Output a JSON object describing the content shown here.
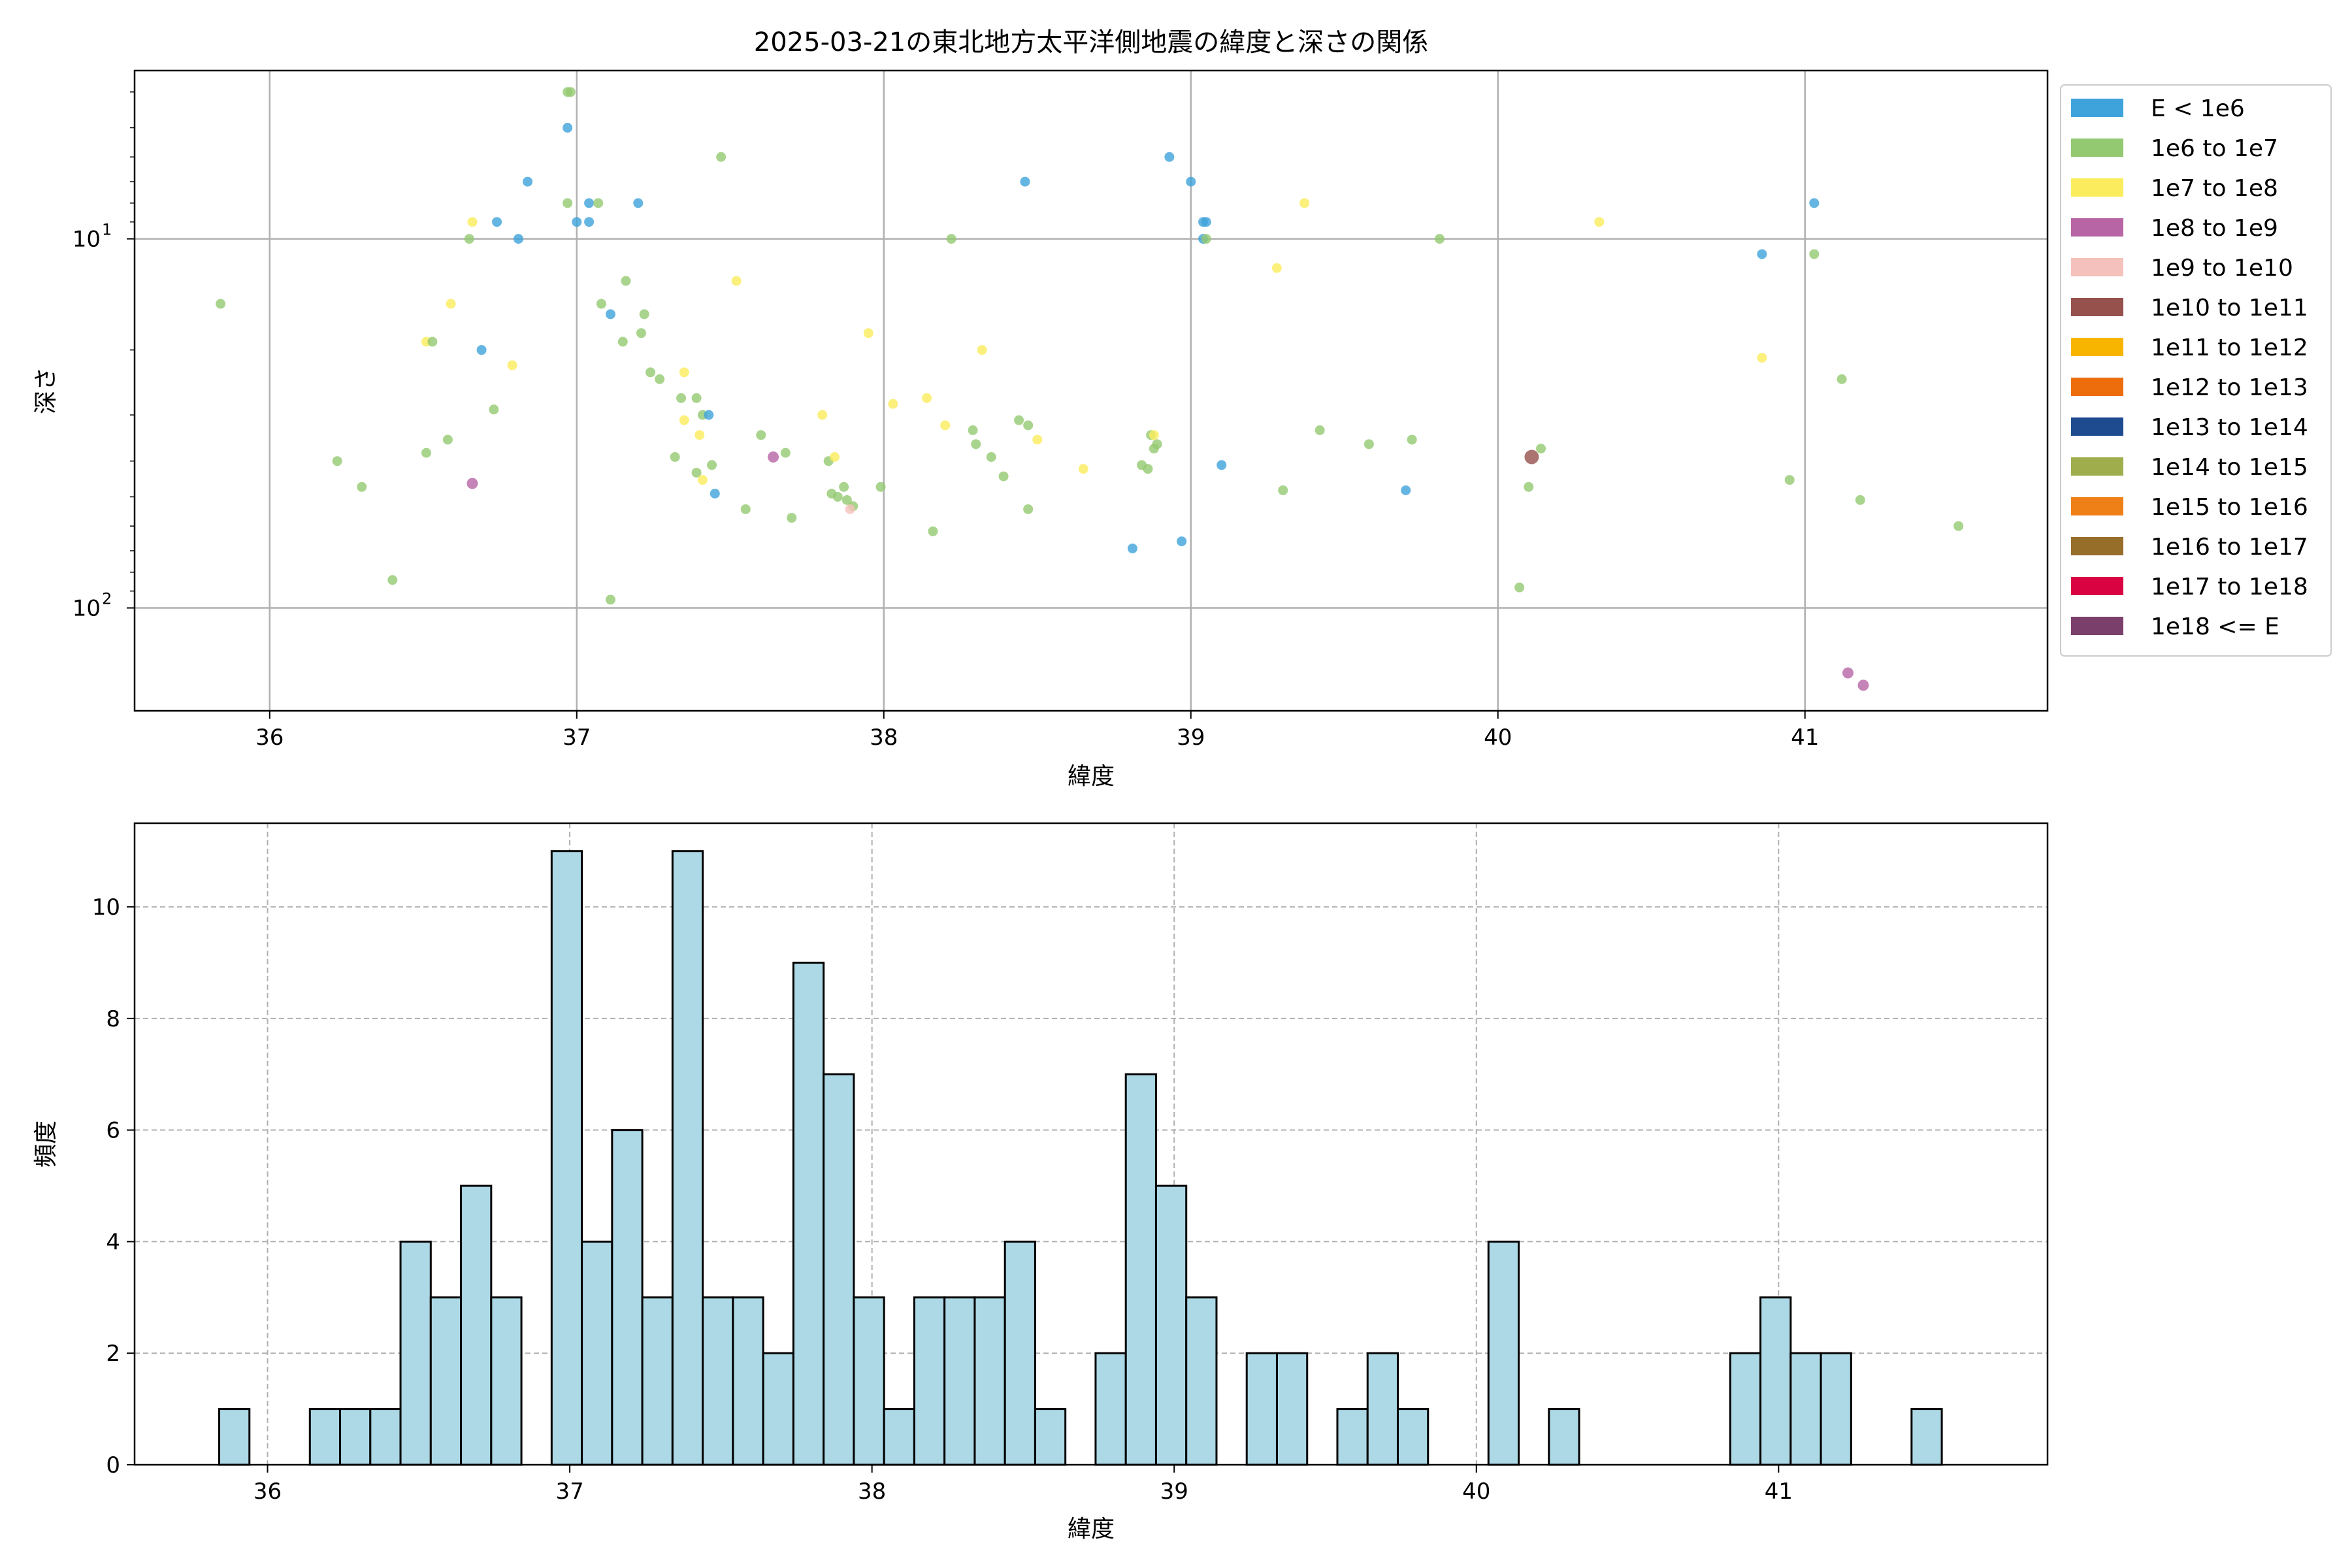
{
  "chart_data": [
    {
      "type": "scatter",
      "title": "2025-03-21の東北地方太平洋側地震の緯度と深さの関係",
      "xlabel": "緯度",
      "ylabel": "深さ",
      "xlim": [
        35.56,
        41.79
      ],
      "ylim": [
        190,
        3.5
      ],
      "yscale": "log",
      "y_inverted": true,
      "grid": true,
      "xticks": [
        36,
        37,
        38,
        39,
        40,
        41
      ],
      "yticks": [
        {
          "value": 10,
          "base": "10",
          "exp": "1"
        },
        {
          "value": 100,
          "base": "10",
          "exp": "2"
        }
      ],
      "legend_position": "outside-right",
      "legend": [
        {
          "label": "E < 1e6",
          "color": "#3fa3db"
        },
        {
          "label": "1e6 to 1e7",
          "color": "#93c971"
        },
        {
          "label": "1e7 to 1e8",
          "color": "#fbec5d"
        },
        {
          "label": "1e8 to 1e9",
          "color": "#b765a5"
        },
        {
          "label": "1e9 to 1e10",
          "color": "#f5c1bc"
        },
        {
          "label": "1e10 to 1e11",
          "color": "#96514d"
        },
        {
          "label": "1e11 to 1e12",
          "color": "#f8b500"
        },
        {
          "label": "1e12 to 1e13",
          "color": "#ed6d0d"
        },
        {
          "label": "1e13 to 1e14",
          "color": "#1e4b8f"
        },
        {
          "label": "1e14 to 1e15",
          "color": "#9fad4d"
        },
        {
          "label": "1e15 to 1e16",
          "color": "#ef7f17"
        },
        {
          "label": "1e16 to 1e17",
          "color": "#976d2a"
        },
        {
          "label": "1e17 to 1e18",
          "color": "#d90342"
        },
        {
          "label": "1e18 <= E",
          "color": "#7b3f6c"
        }
      ],
      "points": [
        {
          "x": 36.97,
          "y": 4.0,
          "c": 1
        },
        {
          "x": 36.98,
          "y": 4.0,
          "c": 1
        },
        {
          "x": 36.97,
          "y": 5.0,
          "c": 0
        },
        {
          "x": 37.47,
          "y": 6.0,
          "c": 1
        },
        {
          "x": 38.93,
          "y": 6.0,
          "c": 0
        },
        {
          "x": 36.84,
          "y": 7.0,
          "c": 0
        },
        {
          "x": 38.46,
          "y": 7.0,
          "c": 0
        },
        {
          "x": 39.0,
          "y": 7.0,
          "c": 0
        },
        {
          "x": 36.97,
          "y": 8.0,
          "c": 1
        },
        {
          "x": 37.04,
          "y": 8.0,
          "c": 0
        },
        {
          "x": 37.07,
          "y": 8.0,
          "c": 1
        },
        {
          "x": 37.2,
          "y": 8.0,
          "c": 0
        },
        {
          "x": 39.37,
          "y": 8.0,
          "c": 2
        },
        {
          "x": 41.03,
          "y": 8.0,
          "c": 0
        },
        {
          "x": 36.66,
          "y": 9.0,
          "c": 2
        },
        {
          "x": 36.74,
          "y": 9.0,
          "c": 0
        },
        {
          "x": 37.0,
          "y": 9.0,
          "c": 0
        },
        {
          "x": 37.04,
          "y": 9.0,
          "c": 0
        },
        {
          "x": 39.04,
          "y": 9.0,
          "c": 0
        },
        {
          "x": 39.05,
          "y": 9.0,
          "c": 0
        },
        {
          "x": 40.33,
          "y": 9.0,
          "c": 2
        },
        {
          "x": 36.65,
          "y": 10.0,
          "c": 1
        },
        {
          "x": 36.81,
          "y": 10.0,
          "c": 0
        },
        {
          "x": 38.22,
          "y": 10.0,
          "c": 1
        },
        {
          "x": 39.04,
          "y": 10.0,
          "c": 0
        },
        {
          "x": 39.05,
          "y": 10.0,
          "c": 1
        },
        {
          "x": 39.81,
          "y": 10.0,
          "c": 1
        },
        {
          "x": 40.86,
          "y": 11.0,
          "c": 0
        },
        {
          "x": 41.03,
          "y": 11.0,
          "c": 1
        },
        {
          "x": 39.28,
          "y": 12.0,
          "c": 2
        },
        {
          "x": 37.16,
          "y": 13.0,
          "c": 1
        },
        {
          "x": 37.52,
          "y": 13.0,
          "c": 2
        },
        {
          "x": 35.84,
          "y": 15.0,
          "c": 1
        },
        {
          "x": 36.59,
          "y": 15.0,
          "c": 2
        },
        {
          "x": 37.08,
          "y": 15.0,
          "c": 1
        },
        {
          "x": 37.11,
          "y": 16.0,
          "c": 0
        },
        {
          "x": 37.22,
          "y": 16.0,
          "c": 1
        },
        {
          "x": 37.21,
          "y": 18.0,
          "c": 1
        },
        {
          "x": 37.95,
          "y": 18.0,
          "c": 2
        },
        {
          "x": 36.51,
          "y": 19.0,
          "c": 2
        },
        {
          "x": 36.53,
          "y": 19.0,
          "c": 1
        },
        {
          "x": 37.15,
          "y": 19.0,
          "c": 1
        },
        {
          "x": 36.69,
          "y": 20.0,
          "c": 0
        },
        {
          "x": 38.32,
          "y": 20.0,
          "c": 2
        },
        {
          "x": 36.79,
          "y": 22.0,
          "c": 2
        },
        {
          "x": 40.86,
          "y": 21.0,
          "c": 2
        },
        {
          "x": 37.24,
          "y": 23.0,
          "c": 1
        },
        {
          "x": 37.35,
          "y": 23.0,
          "c": 2
        },
        {
          "x": 37.27,
          "y": 24.0,
          "c": 1
        },
        {
          "x": 41.12,
          "y": 24.0,
          "c": 1
        },
        {
          "x": 37.34,
          "y": 27.0,
          "c": 1
        },
        {
          "x": 37.39,
          "y": 27.0,
          "c": 1
        },
        {
          "x": 38.03,
          "y": 28.0,
          "c": 2
        },
        {
          "x": 38.14,
          "y": 27.0,
          "c": 2
        },
        {
          "x": 36.73,
          "y": 29.0,
          "c": 1
        },
        {
          "x": 37.35,
          "y": 31.0,
          "c": 2
        },
        {
          "x": 37.41,
          "y": 30.0,
          "c": 1
        },
        {
          "x": 37.43,
          "y": 30.0,
          "c": 0
        },
        {
          "x": 37.8,
          "y": 30.0,
          "c": 2
        },
        {
          "x": 38.44,
          "y": 31.0,
          "c": 1
        },
        {
          "x": 38.2,
          "y": 32.0,
          "c": 2
        },
        {
          "x": 38.29,
          "y": 33.0,
          "c": 1
        },
        {
          "x": 38.47,
          "y": 32.0,
          "c": 1
        },
        {
          "x": 39.42,
          "y": 33.0,
          "c": 1
        },
        {
          "x": 37.6,
          "y": 34.0,
          "c": 1
        },
        {
          "x": 38.87,
          "y": 34.0,
          "c": 1
        },
        {
          "x": 38.88,
          "y": 34.0,
          "c": 2
        },
        {
          "x": 36.58,
          "y": 35.0,
          "c": 1
        },
        {
          "x": 37.4,
          "y": 34.0,
          "c": 2
        },
        {
          "x": 38.3,
          "y": 36.0,
          "c": 1
        },
        {
          "x": 38.5,
          "y": 35.0,
          "c": 2
        },
        {
          "x": 38.89,
          "y": 36.0,
          "c": 1
        },
        {
          "x": 38.88,
          "y": 37.0,
          "c": 1
        },
        {
          "x": 39.58,
          "y": 36.0,
          "c": 1
        },
        {
          "x": 39.72,
          "y": 35.0,
          "c": 1
        },
        {
          "x": 40.14,
          "y": 37.0,
          "c": 1
        },
        {
          "x": 36.22,
          "y": 40.0,
          "c": 1
        },
        {
          "x": 36.51,
          "y": 38.0,
          "c": 1
        },
        {
          "x": 37.32,
          "y": 39.0,
          "c": 1
        },
        {
          "x": 37.68,
          "y": 38.0,
          "c": 1
        },
        {
          "x": 38.35,
          "y": 39.0,
          "c": 1
        },
        {
          "x": 37.64,
          "y": 39.0,
          "c": 3
        },
        {
          "x": 40.11,
          "y": 39.0,
          "c": 5
        },
        {
          "x": 37.82,
          "y": 40.0,
          "c": 1
        },
        {
          "x": 37.84,
          "y": 39.0,
          "c": 2
        },
        {
          "x": 38.84,
          "y": 41.0,
          "c": 1
        },
        {
          "x": 37.44,
          "y": 41.0,
          "c": 1
        },
        {
          "x": 38.86,
          "y": 42.0,
          "c": 1
        },
        {
          "x": 39.1,
          "y": 41.0,
          "c": 0
        },
        {
          "x": 38.65,
          "y": 42.0,
          "c": 2
        },
        {
          "x": 37.39,
          "y": 43.0,
          "c": 1
        },
        {
          "x": 37.41,
          "y": 45.0,
          "c": 2
        },
        {
          "x": 38.39,
          "y": 44.0,
          "c": 1
        },
        {
          "x": 36.3,
          "y": 47.0,
          "c": 1
        },
        {
          "x": 36.66,
          "y": 46.0,
          "c": 3
        },
        {
          "x": 37.45,
          "y": 49.0,
          "c": 0
        },
        {
          "x": 37.87,
          "y": 47.0,
          "c": 1
        },
        {
          "x": 37.99,
          "y": 47.0,
          "c": 1
        },
        {
          "x": 37.83,
          "y": 49.0,
          "c": 1
        },
        {
          "x": 37.85,
          "y": 50.0,
          "c": 1
        },
        {
          "x": 39.3,
          "y": 48.0,
          "c": 1
        },
        {
          "x": 39.7,
          "y": 48.0,
          "c": 0
        },
        {
          "x": 40.1,
          "y": 47.0,
          "c": 1
        },
        {
          "x": 37.88,
          "y": 51.0,
          "c": 1
        },
        {
          "x": 37.9,
          "y": 53.0,
          "c": 1
        },
        {
          "x": 41.18,
          "y": 51.0,
          "c": 1
        },
        {
          "x": 37.89,
          "y": 54.0,
          "c": 4
        },
        {
          "x": 37.55,
          "y": 54.0,
          "c": 1
        },
        {
          "x": 38.47,
          "y": 54.0,
          "c": 1
        },
        {
          "x": 37.7,
          "y": 57.0,
          "c": 1
        },
        {
          "x": 40.95,
          "y": 45.0,
          "c": 1
        },
        {
          "x": 38.16,
          "y": 62.0,
          "c": 1
        },
        {
          "x": 41.5,
          "y": 60.0,
          "c": 1
        },
        {
          "x": 38.97,
          "y": 66.0,
          "c": 0
        },
        {
          "x": 38.81,
          "y": 69.0,
          "c": 0
        },
        {
          "x": 36.4,
          "y": 84.0,
          "c": 1
        },
        {
          "x": 40.07,
          "y": 88.0,
          "c": 1
        },
        {
          "x": 37.11,
          "y": 95.0,
          "c": 1
        },
        {
          "x": 41.14,
          "y": 150.0,
          "c": 3
        },
        {
          "x": 41.19,
          "y": 162.0,
          "c": 3
        }
      ]
    },
    {
      "type": "bar",
      "title": "",
      "xlabel": "緯度",
      "ylabel": "頻度",
      "xlim": [
        35.56,
        41.89
      ],
      "ylim": [
        0,
        11.5
      ],
      "grid": true,
      "xticks": [
        36,
        37,
        38,
        39,
        40,
        41
      ],
      "yticks": [
        0,
        2,
        4,
        6,
        8,
        10
      ],
      "bin_start": 35.84,
      "bin_width": 0.1,
      "counts": [
        1,
        0,
        0,
        1,
        1,
        1,
        4,
        3,
        5,
        3,
        0,
        11,
        4,
        6,
        3,
        11,
        3,
        3,
        2,
        9,
        7,
        3,
        1,
        3,
        3,
        3,
        4,
        1,
        0,
        2,
        7,
        5,
        3,
        0,
        2,
        2,
        0,
        1,
        2,
        1,
        0,
        0,
        4,
        0,
        1,
        0,
        0,
        0,
        0,
        0,
        2,
        3,
        2,
        2,
        0,
        0,
        1
      ],
      "bar_color": "#add8e6",
      "edge_color": "#000000"
    }
  ]
}
